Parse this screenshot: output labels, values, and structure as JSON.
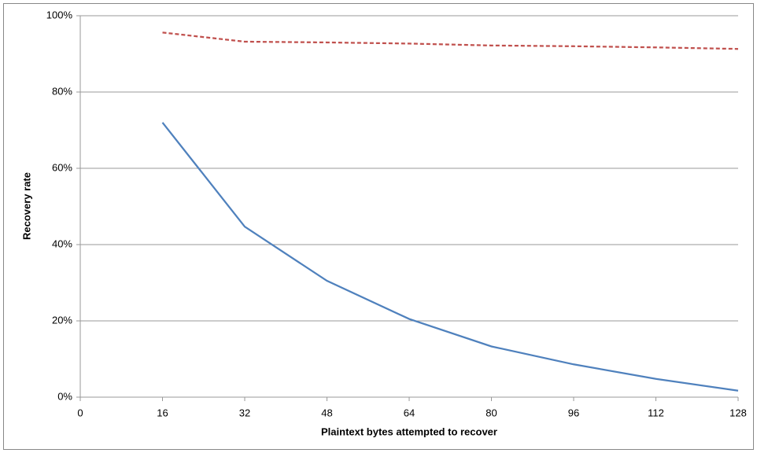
{
  "chart_data": {
    "type": "line",
    "x_label": "Plaintext bytes attempted to recover",
    "y_label": "Recovery rate",
    "x": [
      16,
      32,
      48,
      64,
      80,
      96,
      112,
      128
    ],
    "series": [
      {
        "color": "#4f81bd",
        "line_style": "solid",
        "values": [
          72,
          44.7,
          30.5,
          20.5,
          13.3,
          8.6,
          4.8,
          1.7
        ]
      },
      {
        "color": "#c0504d",
        "line_style": "dashed",
        "values": [
          95.6,
          93.2,
          93.0,
          92.7,
          92.2,
          92.0,
          91.7,
          91.3
        ]
      }
    ],
    "xlim": [
      0,
      128
    ],
    "xticks": [
      0,
      16,
      32,
      48,
      64,
      80,
      96,
      112,
      128
    ],
    "ylim": [
      0,
      100
    ],
    "yticks": [
      {
        "value": 0,
        "label": "0%"
      },
      {
        "value": 20,
        "label": "20%"
      },
      {
        "value": 40,
        "label": "40%"
      },
      {
        "value": 60,
        "label": "60%"
      },
      {
        "value": 80,
        "label": "80%"
      },
      {
        "value": 100,
        "label": "100%"
      }
    ],
    "grid": true
  }
}
